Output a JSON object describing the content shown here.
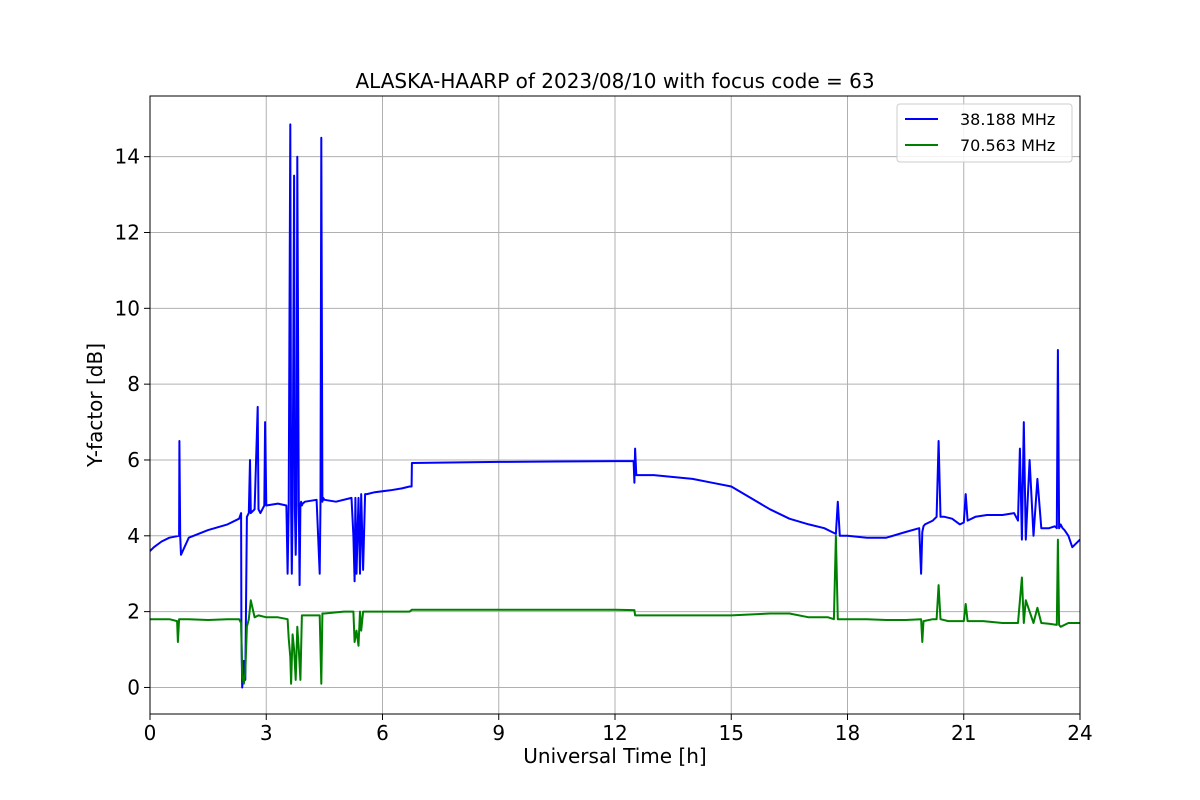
{
  "chart_data": {
    "type": "line",
    "title": "ALASKA-HAARP of 2023/08/10 with focus code = 63",
    "xlabel": "Universal Time [h]",
    "ylabel": "Y-factor [dB]",
    "xlim": [
      0,
      24
    ],
    "ylim": [
      -0.7,
      15.6
    ],
    "xticks": [
      0,
      3,
      6,
      9,
      12,
      15,
      18,
      21,
      24
    ],
    "yticks": [
      0,
      2,
      4,
      6,
      8,
      10,
      12,
      14
    ],
    "grid": true,
    "legend_position": "top-right",
    "series": [
      {
        "name": "38.188 MHz",
        "color": "#0000ff",
        "x": [
          0,
          0.1,
          0.3,
          0.5,
          0.75,
          0.76,
          0.78,
          0.8,
          1.0,
          1.5,
          2.0,
          2.3,
          2.35,
          2.36,
          2.38,
          2.42,
          2.46,
          2.5,
          2.55,
          2.58,
          2.6,
          2.7,
          2.78,
          2.8,
          2.85,
          2.95,
          2.97,
          3.0,
          3.3,
          3.52,
          3.55,
          3.58,
          3.62,
          3.64,
          3.66,
          3.68,
          3.72,
          3.74,
          3.76,
          3.78,
          3.8,
          3.84,
          3.86,
          3.88,
          3.9,
          3.92,
          3.94,
          4.0,
          4.3,
          4.38,
          4.4,
          4.42,
          4.45,
          4.47,
          4.5,
          4.8,
          5.2,
          5.25,
          5.28,
          5.3,
          5.33,
          5.38,
          5.42,
          5.45,
          5.5,
          5.55,
          5.6,
          5.8,
          6.2,
          6.5,
          6.7,
          6.75,
          6.76,
          7.5,
          9.0,
          10.5,
          12.0,
          12.48,
          12.5,
          12.52,
          12.55,
          13.0,
          13.5,
          14.0,
          14.5,
          15.0,
          15.5,
          16.0,
          16.5,
          17.0,
          17.4,
          17.6,
          17.7,
          17.75,
          17.8,
          18.0,
          18.5,
          19.0,
          19.5,
          19.85,
          19.9,
          19.93,
          19.96,
          20.0,
          20.2,
          20.3,
          20.35,
          20.4,
          20.5,
          20.7,
          20.9,
          21.0,
          21.05,
          21.1,
          21.3,
          21.6,
          22.0,
          22.3,
          22.4,
          22.45,
          22.5,
          22.55,
          22.6,
          22.7,
          22.8,
          22.9,
          23.0,
          23.2,
          23.35,
          23.4,
          23.43,
          23.46,
          23.5,
          23.55,
          23.6,
          23.7,
          23.8,
          24.0
        ],
        "y": [
          3.6,
          3.7,
          3.85,
          3.95,
          4.0,
          6.5,
          4.0,
          3.5,
          3.95,
          4.15,
          4.3,
          4.45,
          4.6,
          1.5,
          0.0,
          0.7,
          0.2,
          4.5,
          4.6,
          6.0,
          4.6,
          4.7,
          7.4,
          4.7,
          4.6,
          4.8,
          7.0,
          4.8,
          4.85,
          4.8,
          3.0,
          4.8,
          14.85,
          4.8,
          3.0,
          4.8,
          13.5,
          4.7,
          3.5,
          4.8,
          14.0,
          4.8,
          2.7,
          4.8,
          4.9,
          4.8,
          4.85,
          4.9,
          4.95,
          3.0,
          4.9,
          14.5,
          4.9,
          5.0,
          4.95,
          4.9,
          5.0,
          4.0,
          2.8,
          5.0,
          3.0,
          5.0,
          3.0,
          5.1,
          3.1,
          5.1,
          5.1,
          5.15,
          5.2,
          5.25,
          5.3,
          5.3,
          5.92,
          5.93,
          5.95,
          5.96,
          5.97,
          5.97,
          5.4,
          6.3,
          5.6,
          5.6,
          5.55,
          5.5,
          5.4,
          5.3,
          5.0,
          4.7,
          4.45,
          4.3,
          4.2,
          4.1,
          4.05,
          4.9,
          4.0,
          4.0,
          3.95,
          3.95,
          4.1,
          4.2,
          3.0,
          4.1,
          4.25,
          4.3,
          4.4,
          4.5,
          6.5,
          4.5,
          4.5,
          4.45,
          4.3,
          4.35,
          5.1,
          4.4,
          4.5,
          4.55,
          4.55,
          4.6,
          4.4,
          6.3,
          3.9,
          7.0,
          3.9,
          6.0,
          4.0,
          5.5,
          4.2,
          4.2,
          4.25,
          4.2,
          8.9,
          4.2,
          4.3,
          4.2,
          4.15,
          4.0,
          3.7,
          3.9
        ]
      },
      {
        "name": "70.563 MHz",
        "color": "#008000",
        "x": [
          0,
          0.5,
          0.7,
          0.72,
          0.75,
          1.0,
          1.5,
          2.0,
          2.3,
          2.35,
          2.38,
          2.42,
          2.46,
          2.5,
          2.55,
          2.6,
          2.7,
          2.8,
          3.0,
          3.3,
          3.55,
          3.58,
          3.62,
          3.64,
          3.68,
          3.72,
          3.76,
          3.8,
          3.84,
          3.88,
          3.92,
          4.0,
          4.38,
          4.42,
          4.45,
          4.5,
          5.0,
          5.25,
          5.28,
          5.33,
          5.38,
          5.42,
          5.45,
          5.5,
          6.0,
          6.5,
          6.7,
          6.76,
          9.0,
          12.0,
          12.5,
          12.52,
          13.0,
          14.0,
          15.0,
          16.0,
          16.5,
          17.0,
          17.5,
          17.65,
          17.7,
          17.75,
          17.8,
          18.5,
          19.0,
          19.5,
          19.9,
          19.93,
          19.96,
          20.2,
          20.3,
          20.35,
          20.4,
          20.6,
          21.0,
          21.05,
          21.1,
          21.5,
          22.0,
          22.4,
          22.5,
          22.55,
          22.6,
          22.8,
          22.9,
          23.0,
          23.2,
          23.4,
          23.43,
          23.46,
          23.5,
          23.7,
          24.0
        ],
        "y": [
          1.8,
          1.8,
          1.75,
          1.2,
          1.8,
          1.8,
          1.78,
          1.8,
          1.8,
          1.7,
          0.3,
          0.1,
          0.4,
          1.6,
          1.8,
          2.3,
          1.85,
          1.9,
          1.85,
          1.85,
          1.8,
          1.3,
          0.8,
          0.1,
          1.4,
          1.0,
          0.2,
          1.6,
          1.0,
          0.2,
          1.9,
          1.9,
          1.9,
          0.1,
          1.95,
          1.95,
          2.0,
          2.0,
          1.2,
          1.5,
          1.1,
          2.0,
          1.5,
          2.0,
          2.0,
          2.0,
          2.0,
          2.05,
          2.05,
          2.05,
          2.04,
          1.9,
          1.9,
          1.9,
          1.9,
          1.95,
          1.95,
          1.85,
          1.85,
          1.8,
          4.0,
          1.8,
          1.8,
          1.8,
          1.78,
          1.78,
          1.8,
          1.2,
          1.75,
          1.8,
          1.8,
          2.7,
          1.8,
          1.75,
          1.75,
          2.2,
          1.75,
          1.75,
          1.7,
          1.7,
          2.9,
          1.7,
          2.3,
          1.7,
          2.1,
          1.7,
          1.68,
          1.65,
          3.9,
          1.65,
          1.6,
          1.7,
          1.7
        ]
      }
    ]
  }
}
